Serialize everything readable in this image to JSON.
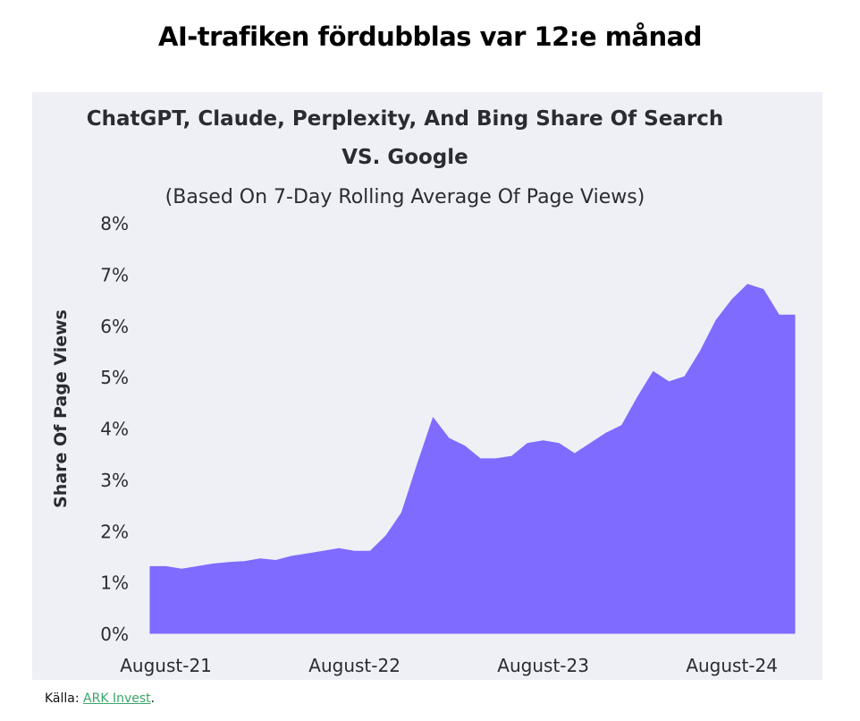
{
  "headline": "AI-trafiken fördubblas var 12:e månad",
  "source": {
    "label": "Källa:",
    "link_text": "ARK Invest",
    "trailing": "."
  },
  "colors": {
    "area_fill": "#7f6bff",
    "panel_bg": "#eef0f6",
    "source_link": "#3aa66a"
  },
  "chart_data": {
    "type": "area",
    "title_line1": "ChatGPT, Claude, Perplexity, And Bing Share Of Search",
    "title_line2": "VS. Google",
    "subtitle": "(Based On 7-Day Rolling Average Of Page Views)",
    "ylabel": "Share Of Page Views",
    "xlabel": "",
    "ylim": [
      0,
      8
    ],
    "yticks": [
      "0%",
      "1%",
      "2%",
      "3%",
      "4%",
      "5%",
      "6%",
      "7%",
      "8%"
    ],
    "xticks": [
      "August-21",
      "August-22",
      "August-23",
      "August-24"
    ],
    "x_range": [
      "2021-07",
      "2024-12"
    ],
    "grid": false,
    "series": [
      {
        "x": [
          "2021-07",
          "2021-08",
          "2021-09",
          "2021-10",
          "2021-11",
          "2021-12",
          "2022-01",
          "2022-02",
          "2022-03",
          "2022-04",
          "2022-05",
          "2022-06",
          "2022-07",
          "2022-08",
          "2022-09",
          "2022-10",
          "2022-11",
          "2022-12",
          "2023-01",
          "2023-02",
          "2023-03",
          "2023-04",
          "2023-05",
          "2023-06",
          "2023-07",
          "2023-08",
          "2023-09",
          "2023-10",
          "2023-11",
          "2023-12",
          "2024-01",
          "2024-02",
          "2024-03",
          "2024-04",
          "2024-05",
          "2024-06",
          "2024-07",
          "2024-08",
          "2024-09",
          "2024-10",
          "2024-11",
          "2024-12"
        ],
        "values": [
          1.3,
          1.3,
          1.25,
          1.3,
          1.35,
          1.38,
          1.4,
          1.45,
          1.42,
          1.5,
          1.55,
          1.6,
          1.65,
          1.6,
          1.6,
          1.9,
          2.35,
          3.3,
          4.2,
          3.8,
          3.65,
          3.4,
          3.4,
          3.45,
          3.7,
          3.75,
          3.7,
          3.5,
          3.7,
          3.9,
          4.05,
          4.6,
          5.1,
          4.9,
          5.0,
          5.5,
          6.1,
          6.5,
          6.8,
          6.7,
          6.2,
          6.2
        ]
      }
    ]
  }
}
